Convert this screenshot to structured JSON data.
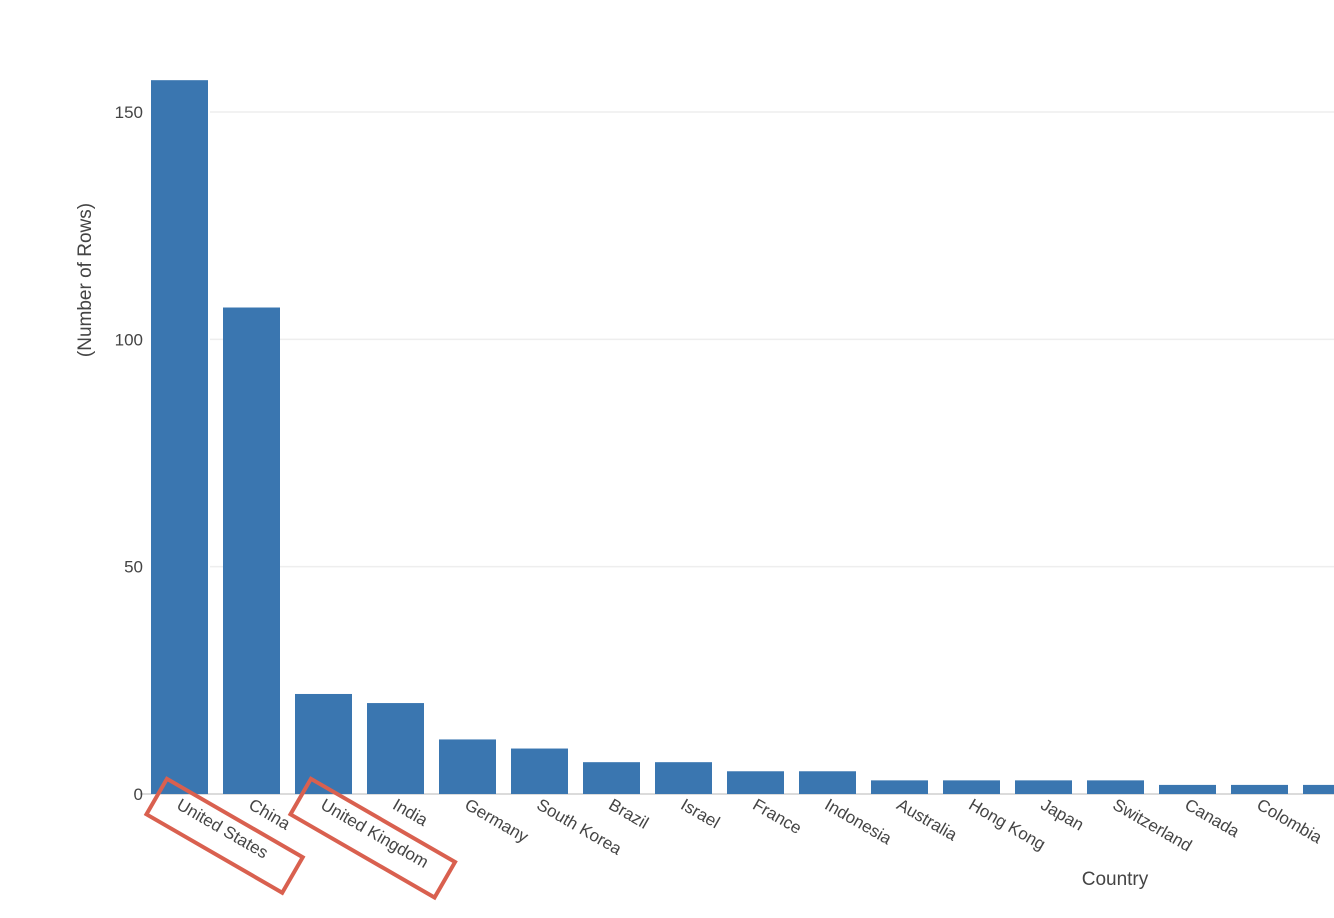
{
  "chart_data": {
    "type": "bar",
    "xlabel": "Country",
    "ylabel": "(Number of Rows)",
    "ylim": [
      0,
      157
    ],
    "yticks": [
      0,
      50,
      100,
      150
    ],
    "grid": true,
    "categories": [
      "United States",
      "China",
      "United Kingdom",
      "India",
      "Germany",
      "South Korea",
      "Brazil",
      "Israel",
      "France",
      "Indonesia",
      "Australia",
      "Hong Kong",
      "Japan",
      "Switzerland",
      "Canada",
      "Colombia",
      ""
    ],
    "values": [
      157,
      107,
      22,
      20,
      12,
      10,
      7,
      7,
      5,
      5,
      3,
      3,
      3,
      3,
      2,
      2,
      2
    ],
    "colors": {
      "bar": "#3a76b0",
      "highlight": "#d9604f"
    },
    "highlighted_categories": [
      "United States",
      "United Kingdom"
    ]
  }
}
